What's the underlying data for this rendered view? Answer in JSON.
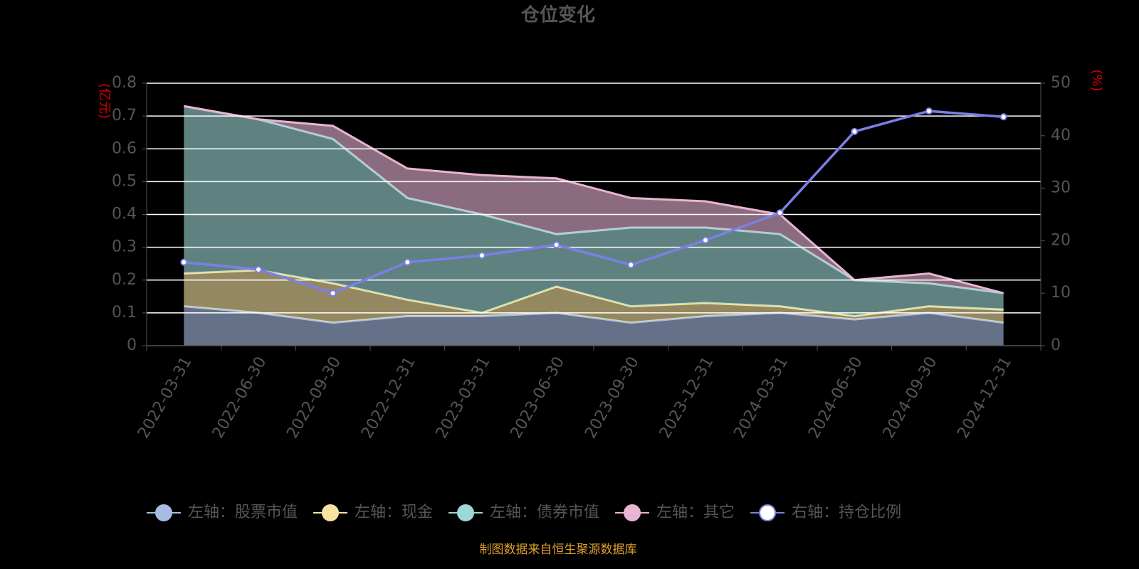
{
  "chart_data": {
    "type": "stacked-area-line",
    "title": "仓位变化",
    "y_label": "(亿元)",
    "y2_label": "(%)",
    "source": "制图数据来自恒生聚源数据库",
    "categories": [
      "2022-03-31",
      "2022-06-30",
      "2022-09-30",
      "2022-12-31",
      "2023-03-31",
      "2023-06-30",
      "2023-09-30",
      "2023-12-31",
      "2024-03-31",
      "2024-06-30",
      "2024-09-30",
      "2024-12-31"
    ],
    "series": [
      {
        "name": "左轴：股票市值",
        "color": "#a6bde3",
        "values": [
          0.12,
          0.1,
          0.07,
          0.09,
          0.09,
          0.1,
          0.07,
          0.09,
          0.1,
          0.08,
          0.1,
          0.07
        ]
      },
      {
        "name": "左轴：现金",
        "color": "#f7e3a1",
        "values": [
          0.1,
          0.13,
          0.12,
          0.05,
          0.01,
          0.08,
          0.05,
          0.04,
          0.02,
          0.01,
          0.02,
          0.04
        ]
      },
      {
        "name": "左轴：债券市值",
        "color": "#9ed8d6",
        "values": [
          0.51,
          0.46,
          0.44,
          0.31,
          0.3,
          0.16,
          0.24,
          0.23,
          0.22,
          0.11,
          0.07,
          0.05
        ]
      },
      {
        "name": "左轴：其它",
        "color": "#e8b4d3",
        "values": [
          0,
          0,
          0.04,
          0.09,
          0.12,
          0.17,
          0.09,
          0.08,
          0.06,
          0,
          0.03,
          0
        ]
      },
      {
        "name": "右轴：持仓比例",
        "color": "#7b7fe8",
        "axis": "y2",
        "values": [
          15.9,
          14.5,
          10.0,
          15.9,
          17.2,
          19.2,
          15.4,
          20.1,
          25.3,
          40.8,
          44.7,
          43.6
        ]
      }
    ],
    "ylim": [
      0,
      0.8
    ],
    "yticks": [
      0,
      0.1,
      0.2,
      0.3,
      0.4,
      0.5,
      0.6,
      0.7,
      0.8
    ],
    "y2lim": [
      0,
      50
    ],
    "y2ticks": [
      0,
      10,
      20,
      30,
      40,
      50
    ],
    "grid": true
  }
}
